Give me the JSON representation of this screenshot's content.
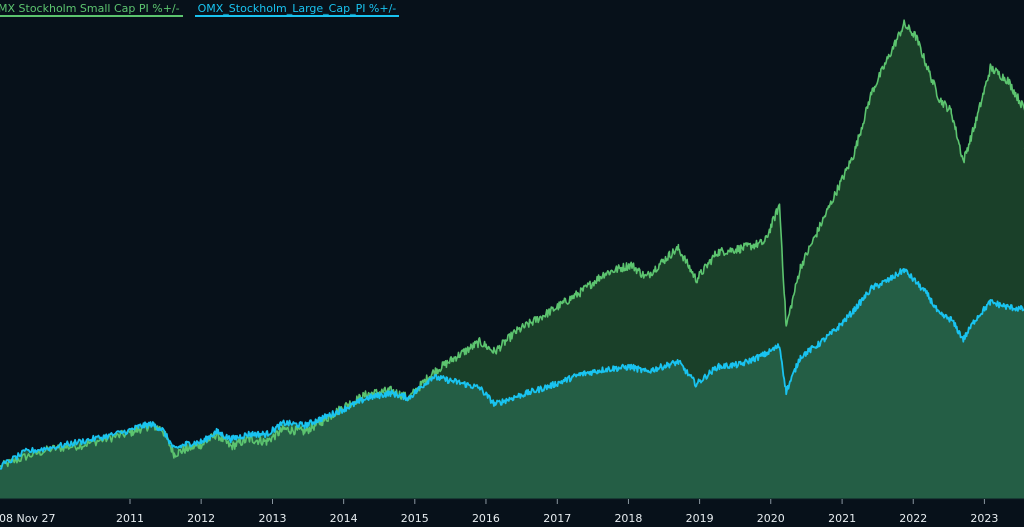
{
  "legend": {
    "small_cap_label": "MX Stockholm Small Cap PI %+/-",
    "large_cap_label": "OMX_Stockholm_Large_Cap_PI %+/-"
  },
  "colors": {
    "background": "#07111a",
    "small_cap_line": "#5cc46f",
    "small_cap_fill": "#1a4029",
    "large_cap_line": "#19c3f0",
    "large_cap_fill": "#245e45",
    "tick_text": "#e6ecef"
  },
  "chart_data": {
    "type": "area",
    "title": "",
    "xlabel": "",
    "ylabel": "",
    "x_tick_labels": [
      "08 Nov 27",
      "2011",
      "2012",
      "2013",
      "2014",
      "2015",
      "2016",
      "2017",
      "2018",
      "2019",
      "2020",
      "2021",
      "2022",
      "2023"
    ],
    "x_range": [
      "2009-11-27",
      "2023-10-31"
    ],
    "grid": false,
    "series": [
      {
        "name": "MX Stockholm Small Cap PI %+/-",
        "color": "#5cc46f",
        "points": [
          [
            "2009-11-27",
            0
          ],
          [
            "2010-02-15",
            8
          ],
          [
            "2010-05-01",
            14
          ],
          [
            "2010-08-01",
            17
          ],
          [
            "2010-11-01",
            23
          ],
          [
            "2011-02-15",
            30
          ],
          [
            "2011-04-20",
            33
          ],
          [
            "2011-06-15",
            30
          ],
          [
            "2011-08-15",
            10
          ],
          [
            "2011-10-15",
            14
          ],
          [
            "2012-01-10",
            18
          ],
          [
            "2012-03-20",
            26
          ],
          [
            "2012-06-01",
            16
          ],
          [
            "2012-09-01",
            22
          ],
          [
            "2012-12-01",
            20
          ],
          [
            "2013-03-01",
            30
          ],
          [
            "2013-06-15",
            28
          ],
          [
            "2013-10-01",
            38
          ],
          [
            "2014-01-01",
            48
          ],
          [
            "2014-05-01",
            58
          ],
          [
            "2014-09-01",
            61
          ],
          [
            "2014-12-01",
            55
          ],
          [
            "2015-04-01",
            75
          ],
          [
            "2015-08-01",
            88
          ],
          [
            "2015-12-01",
            100
          ],
          [
            "2016-02-15",
            92
          ],
          [
            "2016-06-01",
            108
          ],
          [
            "2016-12-01",
            125
          ],
          [
            "2017-05-01",
            140
          ],
          [
            "2017-09-01",
            155
          ],
          [
            "2018-01-15",
            162
          ],
          [
            "2018-04-01",
            152
          ],
          [
            "2018-08-01",
            170
          ],
          [
            "2018-09-15",
            175
          ],
          [
            "2018-12-15",
            150
          ],
          [
            "2019-04-01",
            172
          ],
          [
            "2019-08-01",
            175
          ],
          [
            "2019-12-01",
            180
          ],
          [
            "2020-02-15",
            210
          ],
          [
            "2020-03-20",
            112
          ],
          [
            "2020-06-01",
            160
          ],
          [
            "2020-09-01",
            190
          ],
          [
            "2020-12-01",
            220
          ],
          [
            "2021-03-01",
            250
          ],
          [
            "2021-06-01",
            300
          ],
          [
            "2021-09-01",
            330
          ],
          [
            "2021-11-15",
            355
          ],
          [
            "2022-01-15",
            345
          ],
          [
            "2022-03-15",
            320
          ],
          [
            "2022-05-15",
            295
          ],
          [
            "2022-07-15",
            285
          ],
          [
            "2022-09-15",
            245
          ],
          [
            "2022-11-15",
            275
          ],
          [
            "2023-02-01",
            320
          ],
          [
            "2023-05-01",
            310
          ],
          [
            "2023-08-01",
            285
          ],
          [
            "2023-10-31",
            255
          ]
        ]
      },
      {
        "name": "OMX_Stockholm_Large_Cap_PI %+/-",
        "color": "#19c3f0",
        "points": [
          [
            "2009-11-27",
            0
          ],
          [
            "2010-02-15",
            12
          ],
          [
            "2010-05-01",
            15
          ],
          [
            "2010-08-01",
            20
          ],
          [
            "2010-11-01",
            25
          ],
          [
            "2011-02-15",
            32
          ],
          [
            "2011-04-20",
            34
          ],
          [
            "2011-06-15",
            30
          ],
          [
            "2011-08-15",
            14
          ],
          [
            "2011-10-15",
            18
          ],
          [
            "2012-01-10",
            20
          ],
          [
            "2012-03-20",
            28
          ],
          [
            "2012-06-01",
            22
          ],
          [
            "2012-09-01",
            26
          ],
          [
            "2012-12-01",
            26
          ],
          [
            "2013-03-01",
            35
          ],
          [
            "2013-06-15",
            33
          ],
          [
            "2013-10-01",
            40
          ],
          [
            "2014-01-01",
            46
          ],
          [
            "2014-05-01",
            55
          ],
          [
            "2014-09-01",
            59
          ],
          [
            "2014-12-01",
            55
          ],
          [
            "2015-04-01",
            72
          ],
          [
            "2015-08-01",
            68
          ],
          [
            "2015-12-01",
            63
          ],
          [
            "2016-02-15",
            50
          ],
          [
            "2016-06-01",
            56
          ],
          [
            "2016-12-01",
            65
          ],
          [
            "2017-05-01",
            74
          ],
          [
            "2017-09-01",
            78
          ],
          [
            "2018-01-15",
            80
          ],
          [
            "2018-04-01",
            76
          ],
          [
            "2018-08-01",
            82
          ],
          [
            "2018-09-15",
            84
          ],
          [
            "2018-12-15",
            66
          ],
          [
            "2019-04-01",
            80
          ],
          [
            "2019-08-01",
            82
          ],
          [
            "2019-12-01",
            90
          ],
          [
            "2020-02-15",
            97
          ],
          [
            "2020-03-20",
            60
          ],
          [
            "2020-06-01",
            88
          ],
          [
            "2020-09-01",
            98
          ],
          [
            "2020-12-01",
            110
          ],
          [
            "2021-03-01",
            125
          ],
          [
            "2021-06-01",
            143
          ],
          [
            "2021-09-01",
            150
          ],
          [
            "2021-11-15",
            158
          ],
          [
            "2022-01-15",
            148
          ],
          [
            "2022-03-15",
            138
          ],
          [
            "2022-05-15",
            122
          ],
          [
            "2022-07-15",
            118
          ],
          [
            "2022-09-15",
            102
          ],
          [
            "2022-11-15",
            118
          ],
          [
            "2023-02-01",
            132
          ],
          [
            "2023-05-01",
            128
          ],
          [
            "2023-08-01",
            126
          ],
          [
            "2023-10-31",
            126
          ]
        ]
      }
    ]
  }
}
